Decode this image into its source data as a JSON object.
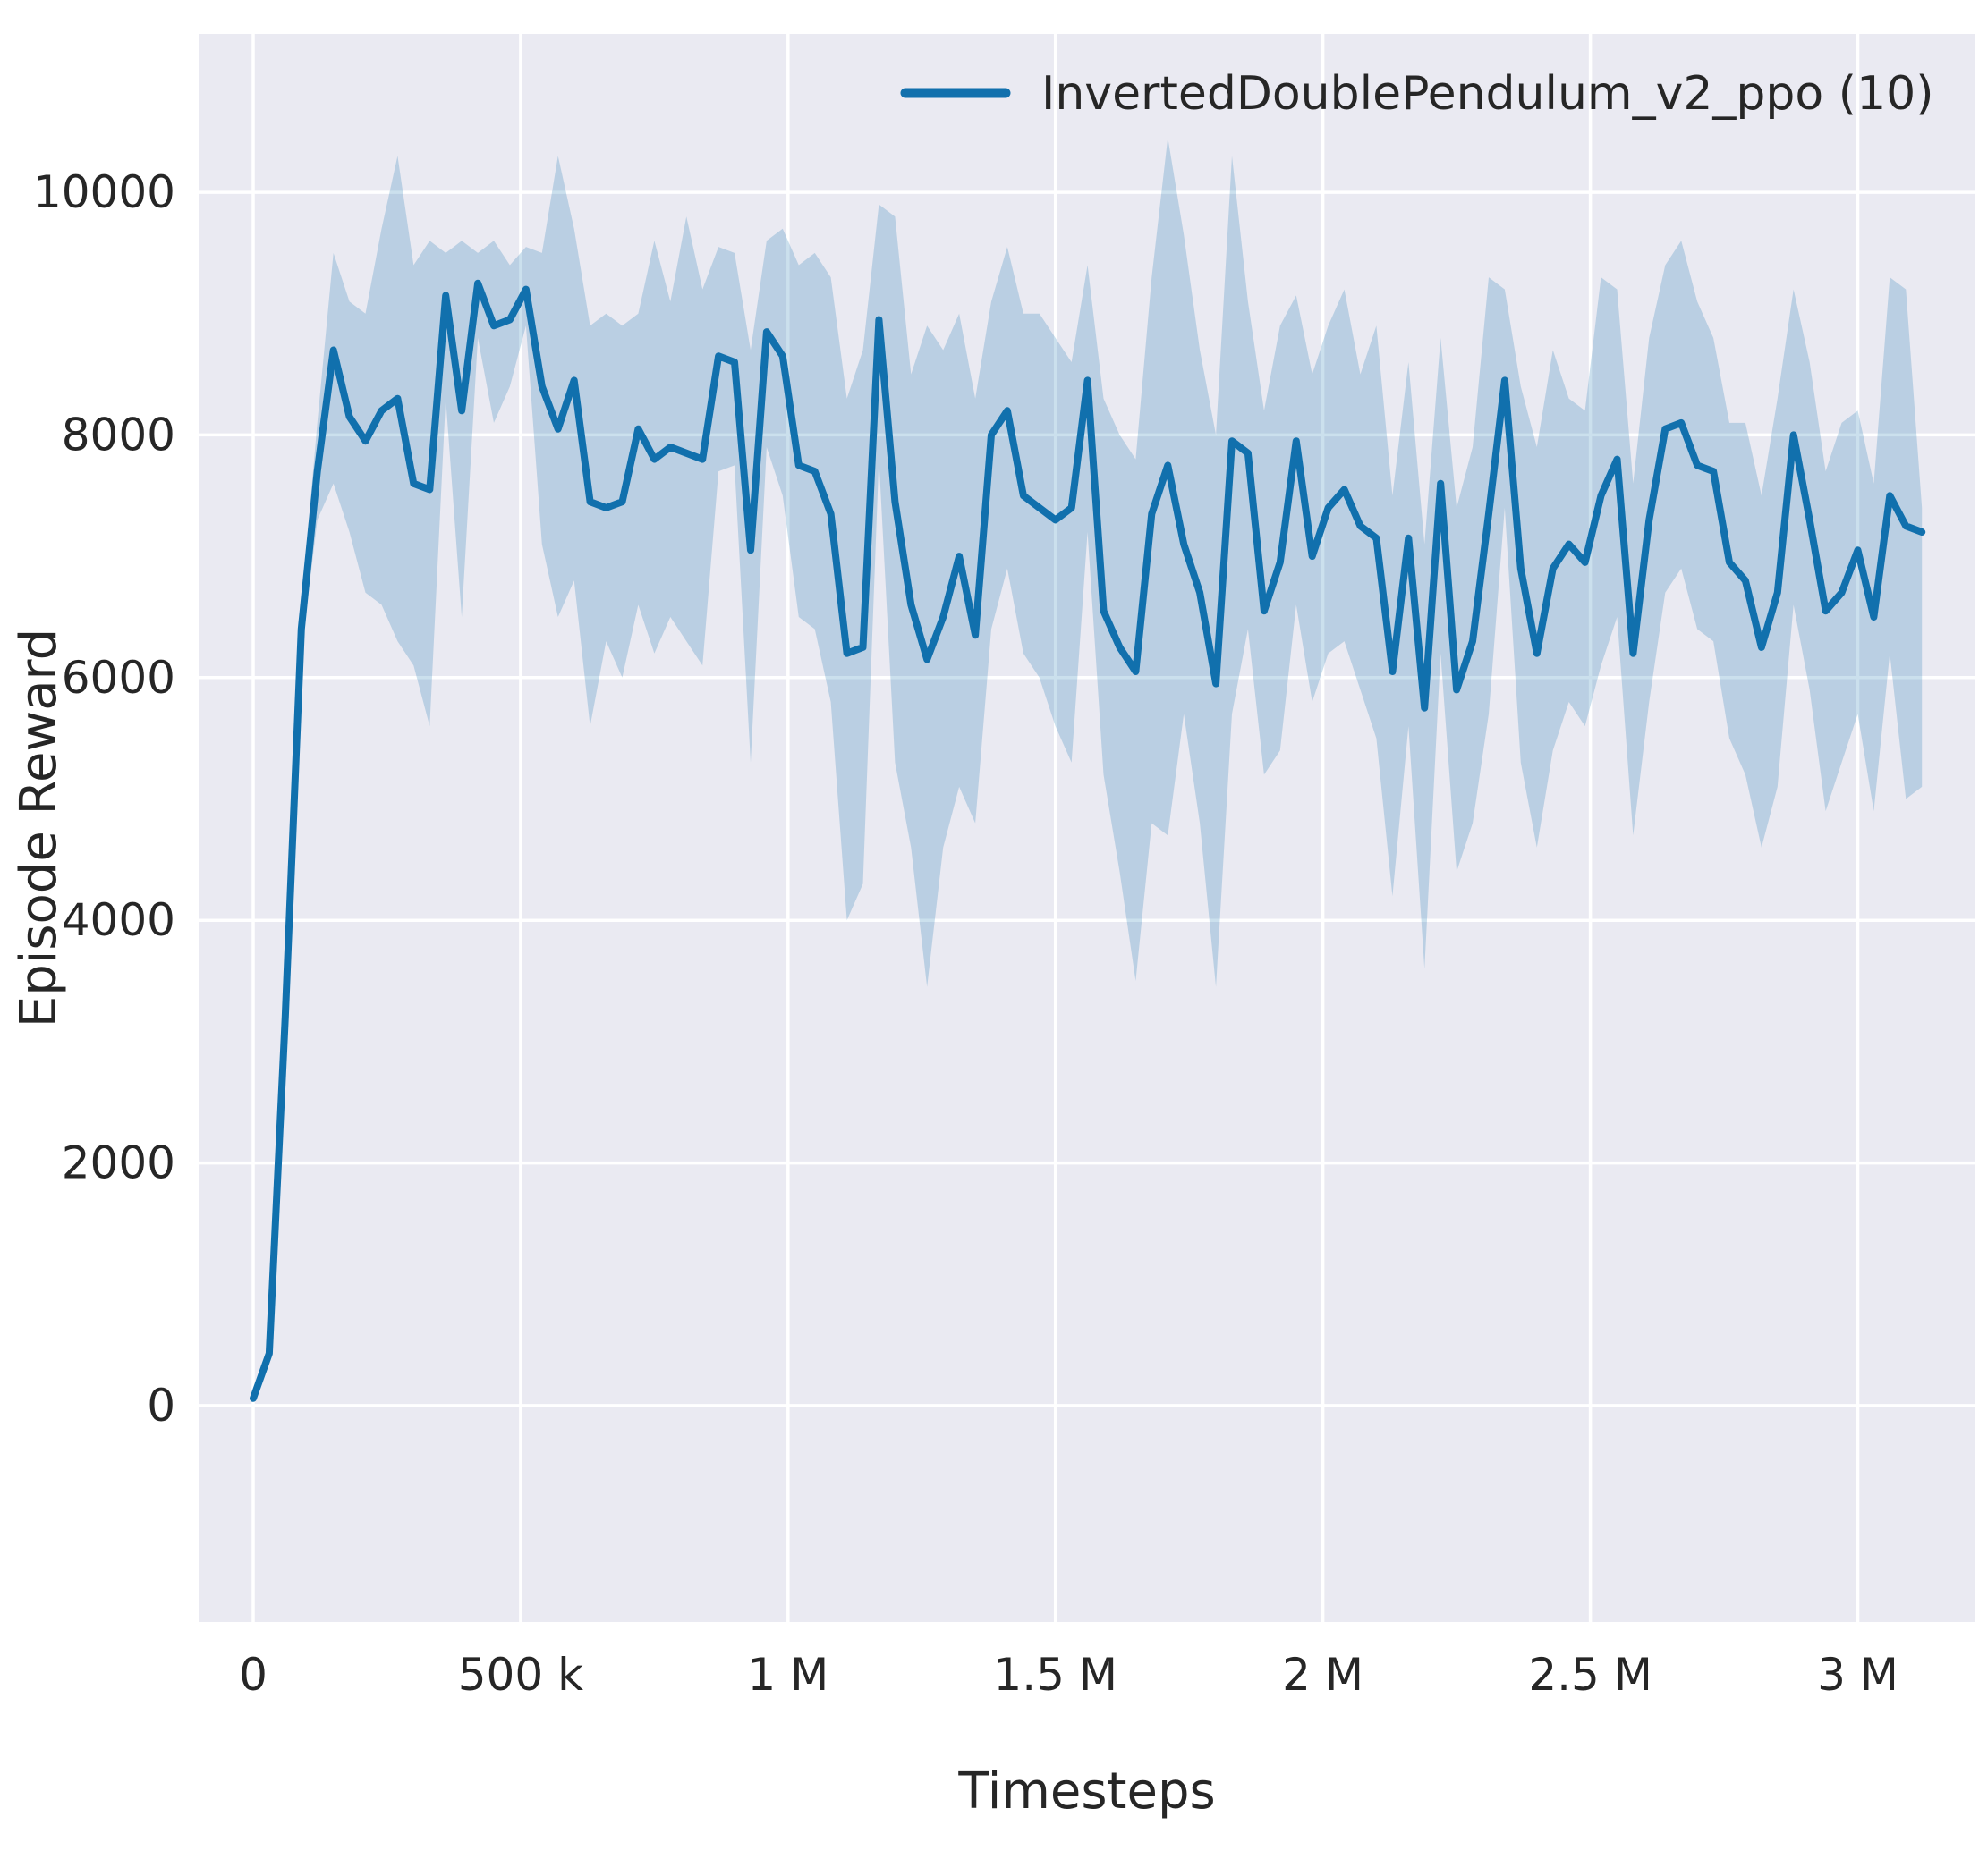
{
  "chart_data": {
    "type": "line",
    "title": "",
    "xlabel": "Timesteps",
    "ylabel": "Episode Reward",
    "legend_position": "upper center",
    "grid": true,
    "xlim": [
      -102000,
      3220000
    ],
    "ylim": [
      -1784,
      11305
    ],
    "xticks": {
      "values": [
        0,
        500000,
        1000000,
        1500000,
        2000000,
        2500000,
        3000000
      ],
      "labels": [
        "0",
        "500 k",
        "1 M",
        "1.5 M",
        "2 M",
        "2.5 M",
        "3 M"
      ]
    },
    "yticks": {
      "values": [
        0,
        2000,
        4000,
        6000,
        8000,
        10000
      ],
      "labels": [
        "0",
        "2000",
        "4000",
        "6000",
        "8000",
        "10000"
      ]
    },
    "style": {
      "plot_background": "#eaeaf2",
      "grid_color": "#ffffff",
      "text_color": "#262626",
      "band_opacity": 0.22
    },
    "series": [
      {
        "name": "InvertedDoublePendulum_v2_ppo (10)",
        "color": "#1170ad",
        "x": [
          0,
          30000,
          60000,
          90000,
          120000,
          150000,
          180000,
          210000,
          240000,
          270000,
          300000,
          330000,
          360000,
          390000,
          420000,
          450000,
          480000,
          510000,
          540000,
          570000,
          600000,
          630000,
          660000,
          690000,
          720000,
          750000,
          780000,
          810000,
          840000,
          870000,
          900000,
          930000,
          960000,
          990000,
          1020000,
          1050000,
          1080000,
          1110000,
          1140000,
          1170000,
          1200000,
          1230000,
          1260000,
          1290000,
          1320000,
          1350000,
          1380000,
          1410000,
          1440000,
          1470000,
          1500000,
          1530000,
          1560000,
          1590000,
          1620000,
          1650000,
          1680000,
          1710000,
          1740000,
          1770000,
          1800000,
          1830000,
          1860000,
          1890000,
          1920000,
          1950000,
          1980000,
          2010000,
          2040000,
          2070000,
          2100000,
          2130000,
          2160000,
          2190000,
          2220000,
          2250000,
          2280000,
          2310000,
          2340000,
          2370000,
          2400000,
          2430000,
          2460000,
          2490000,
          2520000,
          2550000,
          2580000,
          2610000,
          2640000,
          2670000,
          2700000,
          2730000,
          2760000,
          2790000,
          2820000,
          2850000,
          2880000,
          2910000,
          2940000,
          2970000,
          3000000,
          3030000,
          3060000,
          3090000,
          3120000
        ],
        "mean": [
          60,
          430,
          3200,
          6400,
          7700,
          8700,
          8150,
          7950,
          8200,
          8300,
          7600,
          7550,
          9150,
          8200,
          9250,
          8900,
          8950,
          9200,
          8400,
          8050,
          8450,
          7450,
          7400,
          7450,
          8050,
          7800,
          7900,
          7850,
          7800,
          8650,
          8600,
          7050,
          8850,
          8650,
          7750,
          7700,
          7350,
          6200,
          6250,
          8950,
          7450,
          6600,
          6150,
          6500,
          7000,
          6350,
          8000,
          8200,
          7500,
          7400,
          7300,
          7400,
          8450,
          6550,
          6250,
          6050,
          7350,
          7750,
          7100,
          6700,
          5950,
          7950,
          7850,
          6550,
          6950,
          7950,
          7000,
          7400,
          7550,
          7250,
          7150,
          6050,
          7150,
          5750,
          7600,
          5900,
          6300,
          7350,
          8450,
          6900,
          6200,
          6900,
          7100,
          6950,
          7500,
          7800,
          6200,
          7300,
          8050,
          8100,
          7750,
          7700,
          6950,
          6800,
          6250,
          6700,
          8000,
          7300,
          6550,
          6700,
          7050,
          6500,
          7500,
          7250,
          7200
        ],
        "hi": [
          60,
          450,
          3300,
          6600,
          8100,
          9500,
          9100,
          9000,
          9700,
          10300,
          9400,
          9600,
          9500,
          9600,
          9500,
          9600,
          9400,
          9550,
          9500,
          10300,
          9700,
          8900,
          9000,
          8900,
          9000,
          9600,
          9100,
          9800,
          9200,
          9550,
          9500,
          8700,
          9600,
          9700,
          9400,
          9500,
          9300,
          8300,
          8700,
          9900,
          9800,
          8500,
          8900,
          8700,
          9000,
          8300,
          9100,
          9550,
          9000,
          9000,
          8800,
          8600,
          9400,
          8300,
          8000,
          7800,
          9300,
          10450,
          9650,
          8700,
          8000,
          10300,
          9100,
          8200,
          8900,
          9150,
          8500,
          8900,
          9200,
          8500,
          8900,
          7500,
          8600,
          7100,
          8800,
          7400,
          7900,
          9300,
          9200,
          8400,
          7900,
          8700,
          8300,
          8200,
          9300,
          9200,
          7600,
          8800,
          9400,
          9600,
          9100,
          8800,
          8100,
          8100,
          7500,
          8300,
          9200,
          8600,
          7700,
          8100,
          8200,
          7600,
          9300,
          9200,
          7400
        ],
        "lo": [
          60,
          400,
          3100,
          6200,
          7300,
          7600,
          7200,
          6700,
          6600,
          6300,
          6100,
          5600,
          8300,
          6500,
          8800,
          8100,
          8400,
          8900,
          7100,
          6500,
          6800,
          5600,
          6300,
          6000,
          6600,
          6200,
          6500,
          6300,
          6100,
          7700,
          7750,
          5300,
          7900,
          7500,
          6500,
          6400,
          5800,
          4000,
          4300,
          7800,
          5300,
          4600,
          3450,
          4600,
          5100,
          4800,
          6400,
          6900,
          6200,
          6000,
          5600,
          5300,
          7200,
          5200,
          4400,
          3500,
          4800,
          4700,
          5700,
          4800,
          3450,
          5700,
          6400,
          5200,
          5400,
          6600,
          5800,
          6200,
          6300,
          5900,
          5500,
          4200,
          5600,
          3600,
          6200,
          4400,
          4800,
          5700,
          7400,
          5300,
          4600,
          5400,
          5800,
          5600,
          6100,
          6500,
          4700,
          5800,
          6700,
          6900,
          6400,
          6300,
          5500,
          5200,
          4600,
          5100,
          6600,
          5900,
          4900,
          5300,
          5700,
          4900,
          6200,
          5000,
          5100
        ]
      }
    ]
  }
}
